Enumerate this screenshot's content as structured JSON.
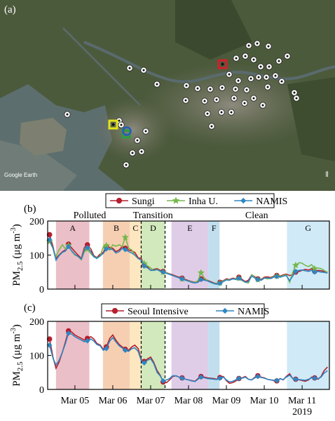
{
  "figure": {
    "panel_a_label": "(a)",
    "panel_b_label": "(b)",
    "panel_c_label": "(c)",
    "map_watermark": "Google Earth",
    "map_north_symbol": "⇑"
  },
  "map": {
    "monitor_sites_count": 48,
    "marker_colors": {
      "site": "#ffffff",
      "sungi_square": "#e3e31b",
      "inha_square": "#2e9e3c",
      "namis_circle": "#1f5fbf",
      "seoul_intensive_square": "#d0202a"
    }
  },
  "colors": {
    "sungi": "#b51f2e",
    "inha": "#74b84a",
    "namis": "#2f86c2",
    "seoul_intensive": "#b51f2e",
    "period_A": "#e8b4bd",
    "period_B": "#f5c7a6",
    "period_C": "#fbe3b5",
    "period_D": "#c9e5b0",
    "period_E": "#d9c4e4",
    "period_F": "#b6d8ec",
    "period_G": "#c8e6f6"
  },
  "chart_data": [
    {
      "type": "line",
      "panel": "(b)",
      "ylabel": "PM2.5 (μg m-3)",
      "ylim": [
        0,
        200
      ],
      "yticks": [
        0,
        100,
        200
      ],
      "x_unit": "days (0 = Mar 05 00:00, 2019)",
      "xlim": [
        -0.72,
        6.72
      ],
      "xticks": [
        0,
        1,
        2,
        3,
        4,
        5,
        6
      ],
      "xtick_labels": [
        "Mar 05",
        "Mar 06",
        "Mar 07",
        "Mar 08",
        "Mar 09",
        "Mar 10",
        "Mar 11"
      ],
      "legend": {
        "placement": "top-center",
        "entries": [
          "Sungi",
          "Inha U.",
          "NAMIS"
        ]
      },
      "regimes": [
        "Polluted",
        "Transition",
        "Clean"
      ],
      "periods": [
        {
          "label": "A",
          "start": -0.5,
          "end": 0.38
        },
        {
          "label": "B",
          "start": 0.74,
          "end": 1.45
        },
        {
          "label": "C",
          "start": 1.45,
          "end": 1.75
        },
        {
          "label": "D",
          "start": 1.75,
          "end": 2.38
        },
        {
          "label": "E",
          "start": 2.55,
          "end": 3.52
        },
        {
          "label": "F",
          "start": 3.52,
          "end": 3.82
        },
        {
          "label": "G",
          "start": 5.6,
          "end": 6.72
        }
      ],
      "dashed_lines_x": [
        1.75,
        2.38
      ],
      "series": [
        {
          "name": "Sungi",
          "x": [
            -0.67,
            -0.58,
            -0.5,
            -0.42,
            -0.33,
            -0.25,
            -0.17,
            -0.08,
            0.0,
            0.08,
            0.17,
            0.25,
            0.33,
            0.42,
            0.5,
            0.58,
            0.67,
            0.75,
            0.83,
            0.92,
            1.0,
            1.08,
            1.17,
            1.25,
            1.33,
            1.42,
            1.5,
            1.58,
            1.67,
            1.75,
            1.83,
            1.92,
            2.0,
            2.08,
            2.17,
            2.25,
            2.33,
            2.42,
            2.5,
            2.58,
            2.67,
            2.75,
            2.83,
            2.92,
            3.0,
            3.08,
            3.17,
            3.25,
            3.33,
            3.42,
            3.5,
            3.58,
            3.67,
            3.75,
            3.83,
            3.92,
            4.0,
            4.08,
            4.17,
            4.25,
            4.33,
            4.42,
            4.5,
            4.58,
            4.67,
            4.75,
            4.83,
            4.92,
            5.0,
            5.08,
            5.17,
            5.25,
            5.33,
            5.42,
            5.5,
            5.58,
            5.67,
            5.75,
            5.83,
            5.92,
            6.0,
            6.08,
            6.17,
            6.25,
            6.33,
            6.42,
            6.5,
            6.58,
            6.67
          ],
          "values": [
            160,
            125,
            90,
            100,
            110,
            115,
            132,
            120,
            110,
            100,
            90,
            122,
            130,
            118,
            98,
            93,
            103,
            108,
            125,
            122,
            120,
            110,
            115,
            125,
            120,
            115,
            112,
            108,
            92,
            90,
            70,
            65,
            55,
            58,
            60,
            55,
            52,
            48,
            45,
            42,
            38,
            35,
            32,
            28,
            25,
            22,
            20,
            22,
            30,
            28,
            26,
            22,
            18,
            16,
            20,
            25,
            30,
            28,
            32,
            30,
            35,
            28,
            22,
            26,
            42,
            36,
            30,
            28,
            35,
            36,
            34,
            38,
            40,
            38,
            42,
            44,
            40,
            42,
            50,
            52,
            55,
            58,
            56,
            60,
            52,
            55,
            54,
            52,
            50
          ]
        },
        {
          "name": "Inha U.",
          "x": [
            -0.67,
            -0.58,
            -0.5,
            -0.42,
            -0.33,
            -0.25,
            -0.17,
            -0.08,
            0.0,
            0.08,
            0.17,
            0.25,
            0.33,
            0.42,
            0.5,
            0.58,
            0.67,
            0.75,
            0.83,
            0.92,
            1.0,
            1.08,
            1.17,
            1.25,
            1.33,
            1.42,
            1.5,
            1.58,
            1.67,
            1.75,
            1.83,
            1.92,
            2.0,
            2.08,
            2.17,
            2.25,
            2.33,
            2.42,
            2.5,
            2.58,
            2.67,
            2.75,
            2.83,
            2.92,
            3.0,
            3.08,
            3.17,
            3.25,
            3.33,
            3.42,
            3.5,
            3.58,
            3.67,
            3.75,
            3.83,
            3.92,
            4.0,
            4.08,
            4.17,
            4.25,
            4.33,
            4.42,
            4.5,
            4.58,
            4.67,
            4.75,
            4.83,
            4.92,
            5.0,
            5.08,
            5.17,
            5.25,
            5.33,
            5.42,
            5.5,
            5.58,
            5.67,
            5.75,
            5.83,
            5.92,
            6.0,
            6.08,
            6.17,
            6.25,
            6.33,
            6.42,
            6.5,
            6.58,
            6.67
          ],
          "values": [
            140,
            120,
            95,
            115,
            130,
            118,
            128,
            110,
            100,
            96,
            86,
            110,
            118,
            104,
            95,
            92,
            97,
            125,
            128,
            115,
            130,
            126,
            130,
            125,
            152,
            120,
            115,
            100,
            90,
            85,
            75,
            68,
            62,
            55,
            58,
            52,
            50,
            47,
            44,
            40,
            36,
            33,
            30,
            26,
            24,
            21,
            19,
            25,
            48,
            32,
            25,
            20,
            17,
            15,
            18,
            24,
            28,
            27,
            30,
            29,
            32,
            25,
            20,
            18,
            42,
            34,
            28,
            26,
            33,
            30,
            32,
            36,
            38,
            36,
            40,
            42,
            20,
            48,
            70,
            78,
            76,
            70,
            66,
            72,
            60,
            62,
            60,
            55,
            48
          ]
        },
        {
          "name": "NAMIS",
          "x": [
            -0.67,
            -0.58,
            -0.5,
            -0.42,
            -0.33,
            -0.25,
            -0.17,
            -0.08,
            0.0,
            0.08,
            0.17,
            0.25,
            0.33,
            0.42,
            0.5,
            0.58,
            0.67,
            0.75,
            0.83,
            0.92,
            1.0,
            1.08,
            1.17,
            1.25,
            1.33,
            1.42,
            1.5,
            1.58,
            1.67,
            1.75,
            1.83,
            1.92,
            2.0,
            2.08,
            2.17,
            2.25,
            2.33,
            2.42,
            2.5,
            2.58,
            2.67,
            2.75,
            2.83,
            2.92,
            3.0,
            3.08,
            3.17,
            3.25,
            3.33,
            3.42,
            3.5,
            3.58,
            3.67,
            3.75,
            3.83,
            3.92,
            4.0,
            4.08,
            4.17,
            4.25,
            4.33,
            4.42,
            4.5,
            4.58,
            4.67,
            4.75,
            4.83,
            4.92,
            5.0,
            5.08,
            5.17,
            5.25,
            5.33,
            5.42,
            5.5,
            5.58,
            5.67,
            5.75,
            5.83,
            5.92,
            6.0,
            6.08,
            6.17,
            6.25,
            6.33,
            6.42,
            6.5,
            6.58,
            6.67
          ],
          "values": [
            145,
            120,
            85,
            98,
            108,
            112,
            125,
            112,
            102,
            96,
            88,
            115,
            122,
            110,
            95,
            90,
            98,
            105,
            118,
            118,
            116,
            106,
            110,
            120,
            116,
            110,
            106,
            100,
            90,
            85,
            68,
            62,
            55,
            55,
            57,
            53,
            50,
            46,
            43,
            40,
            36,
            33,
            30,
            26,
            23,
            20,
            18,
            20,
            28,
            26,
            24,
            20,
            16,
            14,
            17,
            22,
            27,
            26,
            30,
            28,
            32,
            26,
            20,
            22,
            38,
            33,
            28,
            26,
            32,
            33,
            31,
            35,
            37,
            35,
            38,
            40,
            25,
            38,
            52,
            55,
            56,
            54,
            52,
            55,
            50,
            52,
            50,
            49,
            47
          ]
        }
      ]
    },
    {
      "type": "line",
      "panel": "(c)",
      "ylabel": "PM2.5 (μg m-3)",
      "ylim": [
        0,
        200
      ],
      "yticks": [
        0,
        100,
        200
      ],
      "x_unit": "days (0 = Mar 05 00:00, 2019)",
      "xlim": [
        -0.72,
        6.72
      ],
      "xticks": [
        0,
        1,
        2,
        3,
        4,
        5,
        6
      ],
      "xtick_labels": [
        "Mar 05",
        "Mar 06",
        "Mar 07",
        "Mar 08",
        "Mar 09",
        "Mar 10",
        "Mar 11"
      ],
      "year_label": "2019",
      "legend": {
        "placement": "top-center",
        "entries": [
          "Seoul Intensive",
          "NAMIS"
        ]
      },
      "periods": [
        {
          "label": "",
          "start": -0.5,
          "end": 0.38
        },
        {
          "label": "",
          "start": 0.74,
          "end": 1.45
        },
        {
          "label": "",
          "start": 1.45,
          "end": 1.75
        },
        {
          "label": "",
          "start": 1.75,
          "end": 2.38
        },
        {
          "label": "",
          "start": 2.55,
          "end": 3.52
        },
        {
          "label": "",
          "start": 3.52,
          "end": 3.82
        },
        {
          "label": "",
          "start": 5.6,
          "end": 6.72
        }
      ],
      "dashed_lines_x": [
        1.75,
        2.38
      ],
      "series": [
        {
          "name": "Seoul Intensive",
          "x": [
            -0.67,
            -0.58,
            -0.5,
            -0.42,
            -0.33,
            -0.25,
            -0.17,
            -0.08,
            0.0,
            0.08,
            0.17,
            0.25,
            0.33,
            0.42,
            0.5,
            0.58,
            0.67,
            0.75,
            0.83,
            0.92,
            1.0,
            1.08,
            1.17,
            1.25,
            1.33,
            1.42,
            1.5,
            1.58,
            1.67,
            1.75,
            1.83,
            1.92,
            2.0,
            2.08,
            2.17,
            2.25,
            2.33,
            2.42,
            2.5,
            2.58,
            2.67,
            2.75,
            2.83,
            2.92,
            3.0,
            3.08,
            3.17,
            3.25,
            3.33,
            3.42,
            3.5,
            3.58,
            3.67,
            3.75,
            3.83,
            3.92,
            4.0,
            4.08,
            4.17,
            4.25,
            4.33,
            4.42,
            4.5,
            4.58,
            4.67,
            4.75,
            4.83,
            4.92,
            5.0,
            5.08,
            5.17,
            5.25,
            5.33,
            5.42,
            5.5,
            5.58,
            5.67,
            5.75,
            5.83,
            5.92,
            6.0,
            6.08,
            6.17,
            6.25,
            6.33,
            6.42,
            6.5,
            6.58,
            6.67
          ],
          "values": [
            148,
            95,
            62,
            80,
            110,
            140,
            172,
            168,
            160,
            155,
            150,
            145,
            150,
            155,
            148,
            135,
            130,
            118,
            125,
            150,
            160,
            145,
            132,
            125,
            118,
            115,
            125,
            130,
            120,
            88,
            82,
            90,
            95,
            80,
            55,
            42,
            22,
            20,
            28,
            38,
            40,
            36,
            34,
            30,
            28,
            26,
            24,
            32,
            38,
            36,
            34,
            33,
            32,
            30,
            35,
            38,
            26,
            18,
            20,
            25,
            32,
            34,
            38,
            30,
            28,
            36,
            40,
            36,
            34,
            30,
            28,
            26,
            25,
            32,
            28,
            38,
            46,
            32,
            30,
            28,
            26,
            24,
            28,
            36,
            34,
            30,
            38,
            55,
            66
          ]
        },
        {
          "name": "NAMIS",
          "x": [
            -0.67,
            -0.58,
            -0.5,
            -0.42,
            -0.33,
            -0.25,
            -0.17,
            -0.08,
            0.0,
            0.08,
            0.17,
            0.25,
            0.33,
            0.42,
            0.5,
            0.58,
            0.67,
            0.75,
            0.83,
            0.92,
            1.0,
            1.08,
            1.17,
            1.25,
            1.33,
            1.42,
            1.5,
            1.58,
            1.67,
            1.75,
            1.83,
            1.92,
            2.0,
            2.08,
            2.17,
            2.25,
            2.33,
            2.42,
            2.5,
            2.58,
            2.67,
            2.75,
            2.83,
            2.92,
            3.0,
            3.08,
            3.17,
            3.25,
            3.33,
            3.42,
            3.5,
            3.58,
            3.67,
            3.75,
            3.83,
            3.92,
            4.0,
            4.08,
            4.17,
            4.25,
            4.33,
            4.42,
            4.5,
            4.58,
            4.67,
            4.75,
            4.83,
            4.92,
            5.0,
            5.08,
            5.17,
            5.25,
            5.33,
            5.42,
            5.5,
            5.58,
            5.67,
            5.75,
            5.83,
            5.92,
            6.0,
            6.08,
            6.17,
            6.25,
            6.33,
            6.42,
            6.5,
            6.58,
            6.67
          ],
          "values": [
            130,
            92,
            72,
            85,
            110,
            135,
            165,
            162,
            155,
            150,
            145,
            140,
            143,
            148,
            142,
            132,
            128,
            115,
            120,
            142,
            152,
            140,
            128,
            122,
            115,
            112,
            120,
            122,
            112,
            85,
            78,
            86,
            90,
            76,
            50,
            40,
            25,
            28,
            32,
            40,
            40,
            36,
            33,
            30,
            28,
            25,
            23,
            30,
            36,
            34,
            32,
            31,
            30,
            29,
            33,
            36,
            28,
            22,
            24,
            28,
            32,
            33,
            36,
            30,
            28,
            34,
            38,
            35,
            33,
            30,
            28,
            27,
            26,
            31,
            29,
            36,
            42,
            32,
            30,
            29,
            28,
            27,
            30,
            34,
            33,
            32,
            36,
            48,
            55
          ]
        }
      ]
    }
  ]
}
